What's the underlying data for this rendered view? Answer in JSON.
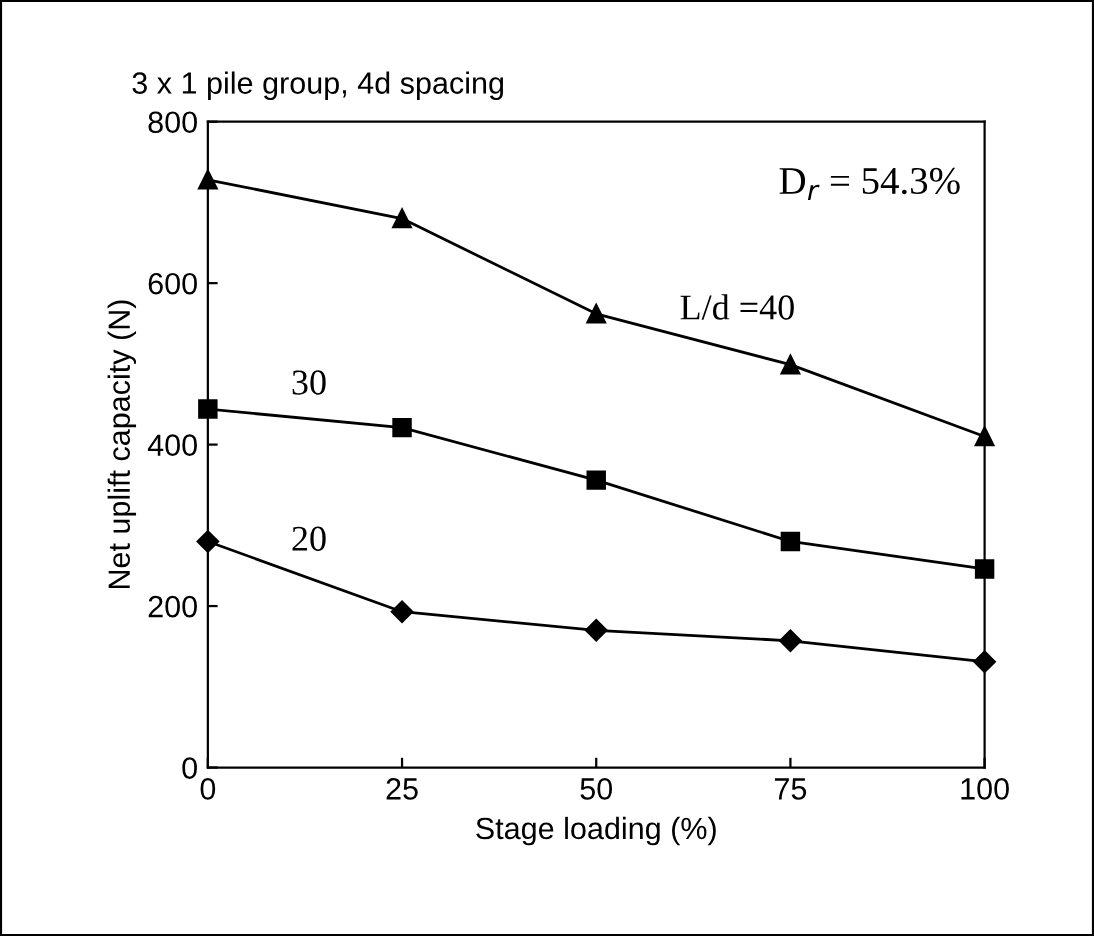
{
  "chart_data": {
    "type": "line",
    "title": "3 x 1 pile group, 4d spacing",
    "xlabel": "Stage loading (%)",
    "ylabel": "Net uplift capacity (N)",
    "x": [
      0,
      25,
      50,
      75,
      100
    ],
    "series": [
      {
        "name": "L/d =40",
        "color": "#000000",
        "marker": "triangle",
        "values": [
          728,
          680,
          562,
          499,
          410
        ]
      },
      {
        "name": "30",
        "color": "#000000",
        "marker": "square",
        "values": [
          444,
          421,
          356,
          280,
          246
        ]
      },
      {
        "name": "20",
        "color": "#000000",
        "marker": "diamond",
        "values": [
          280,
          193,
          170,
          157,
          131
        ]
      }
    ],
    "annotations": [
      "D$_{r}$ = 54.3%"
    ],
    "xlim": [
      0,
      100
    ],
    "xticks": [
      0,
      25,
      50,
      75,
      100
    ],
    "ylim": [
      0,
      800
    ],
    "yticks": [
      0,
      200,
      400,
      600,
      800
    ],
    "grid": false,
    "legend": false,
    "line_style": "solid"
  }
}
